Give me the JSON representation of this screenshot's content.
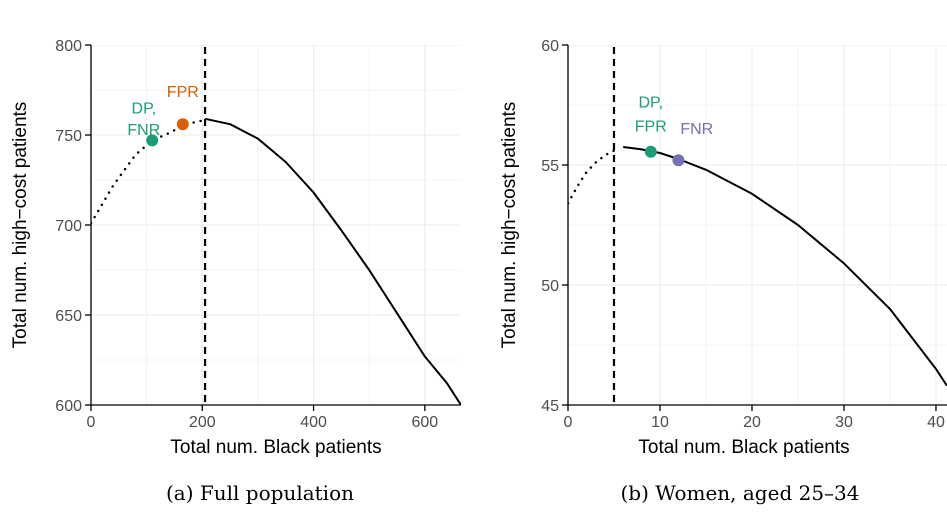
{
  "chart_data": [
    {
      "type": "line",
      "caption": "(a) Full population",
      "xlabel": "Total num. Black patients",
      "ylabel": "Total num. high−cost patients",
      "xlim": [
        0,
        665
      ],
      "ylim": [
        600,
        800
      ],
      "xticks": [
        0,
        200,
        400,
        600
      ],
      "yticks": [
        600,
        650,
        700,
        750,
        800
      ],
      "grid": true,
      "vline": 205,
      "series": [
        {
          "style": "dotted",
          "x": [
            0,
            40,
            80,
            110,
            140,
            170,
            200
          ],
          "y": [
            701,
            722,
            739,
            747,
            751,
            756,
            758
          ]
        },
        {
          "style": "solid",
          "x": [
            205,
            250,
            300,
            350,
            400,
            450,
            500,
            550,
            600,
            640,
            665
          ],
          "y": [
            759,
            756,
            748,
            735,
            718,
            697,
            675,
            651,
            627,
            612,
            600
          ]
        }
      ],
      "points": [
        {
          "x": 110,
          "y": 747,
          "color": "#1b9e77"
        },
        {
          "x": 165,
          "y": 756,
          "color": "#d95f02"
        }
      ],
      "annotations": [
        {
          "text": "DP,",
          "x": 95,
          "y": 762,
          "color": "#1b9e77"
        },
        {
          "text": "FNR",
          "x": 95,
          "y": 750,
          "color": "#1b9e77"
        },
        {
          "text": "FPR",
          "x": 165,
          "y": 771,
          "color": "#d95f02"
        }
      ]
    },
    {
      "type": "line",
      "caption": "(b) Women, aged 25–34",
      "xlabel": "Total num. Black patients",
      "ylabel": "Total num. high−cost patients",
      "xlim": [
        0,
        41.2
      ],
      "ylim": [
        45,
        60
      ],
      "xticks": [
        0,
        10,
        20,
        30,
        40
      ],
      "yticks": [
        45,
        50,
        55,
        60
      ],
      "grid": true,
      "vline": 5,
      "series": [
        {
          "style": "dotted",
          "x": [
            0,
            1,
            2,
            3,
            4,
            5
          ],
          "y": [
            53.4,
            54.1,
            54.7,
            55.1,
            55.4,
            55.6
          ]
        },
        {
          "style": "solid",
          "x": [
            6,
            8,
            10,
            12,
            15,
            20,
            25,
            30,
            35,
            40,
            41.2
          ],
          "y": [
            55.75,
            55.65,
            55.5,
            55.25,
            54.8,
            53.8,
            52.5,
            50.9,
            49.0,
            46.5,
            45.8
          ]
        }
      ],
      "points": [
        {
          "x": 9,
          "y": 55.55,
          "color": "#1b9e77"
        },
        {
          "x": 12,
          "y": 55.2,
          "color": "#7570b3"
        }
      ],
      "annotations": [
        {
          "text": "DP,",
          "x": 9,
          "y": 57.4,
          "color": "#1b9e77"
        },
        {
          "text": "FPR",
          "x": 9,
          "y": 56.4,
          "color": "#1b9e77"
        },
        {
          "text": "FNR",
          "x": 14,
          "y": 56.3,
          "color": "#7570b3"
        }
      ]
    }
  ]
}
